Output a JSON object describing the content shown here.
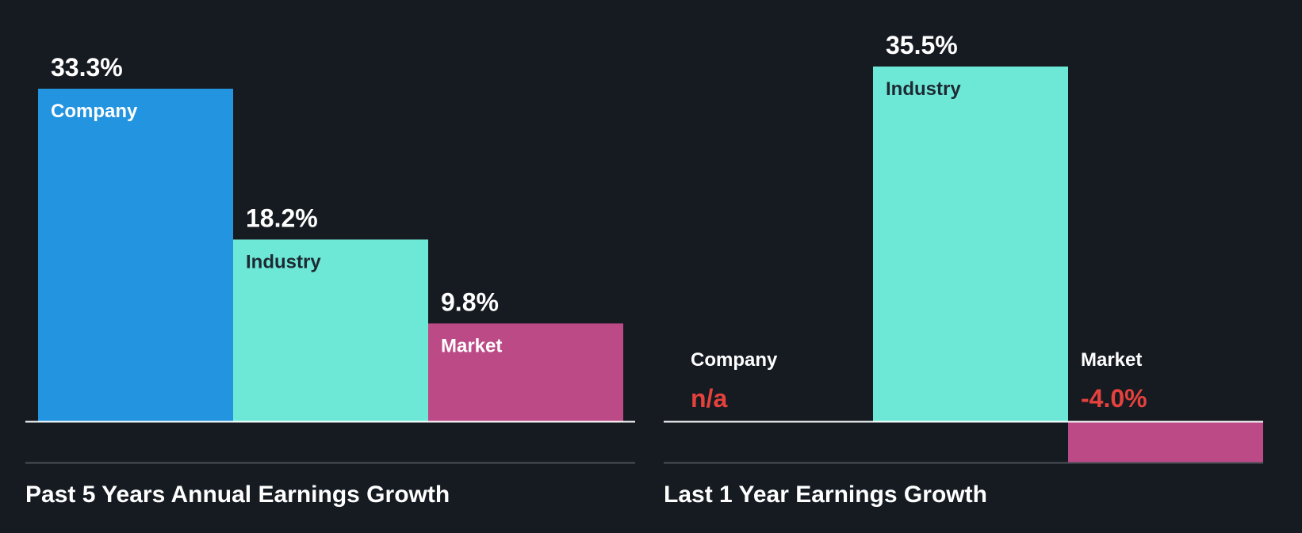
{
  "colors": {
    "background": "#161b22",
    "company": "#2394df",
    "industry": "#6ee8d6",
    "market": "#bb4a86",
    "negative_text": "#e5413d",
    "light_text": "#ffffff",
    "dark_text": "#1d2a33",
    "axis": "#ffffff",
    "divider": "#4a4f57"
  },
  "chart_data": [
    {
      "type": "bar",
      "title": "Past 5 Years Annual Earnings Growth",
      "categories": [
        "Company",
        "Industry",
        "Market"
      ],
      "values": [
        33.3,
        18.2,
        9.8
      ],
      "value_labels": [
        "33.3%",
        "18.2%",
        "9.8%"
      ],
      "ylim": [
        0,
        33.3
      ],
      "unit": "%",
      "grid": false,
      "legend": "none"
    },
    {
      "type": "bar",
      "title": "Last 1 Year Earnings Growth",
      "categories": [
        "Company",
        "Industry",
        "Market"
      ],
      "values": [
        null,
        35.5,
        -4.0
      ],
      "value_labels": [
        "n/a",
        "35.5%",
        "-4.0%"
      ],
      "ylim": [
        -4.0,
        35.5
      ],
      "unit": "%",
      "grid": false,
      "legend": "none"
    }
  ]
}
